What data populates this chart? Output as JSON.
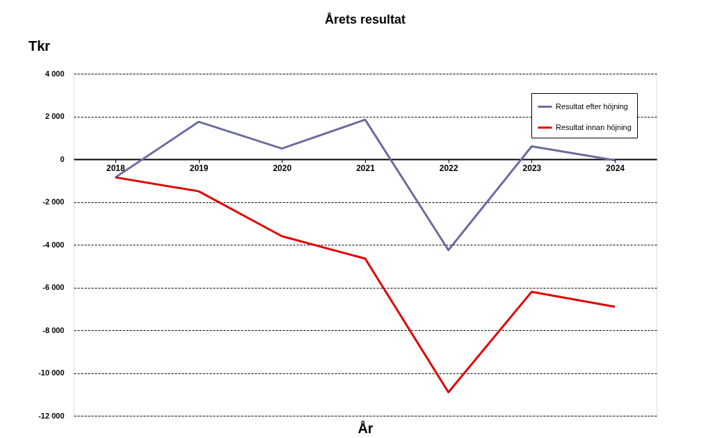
{
  "chart_data": {
    "type": "line",
    "title": "Årets resultat",
    "xlabel": "År",
    "ylabel": "Tkr",
    "categories": [
      "2018",
      "2019",
      "2020",
      "2021",
      "2022",
      "2023",
      "2024"
    ],
    "series": [
      {
        "name": "Resultat efter höjning",
        "color": "#6b6b9e",
        "values": [
          -850,
          1750,
          500,
          1850,
          -4250,
          600,
          -50
        ]
      },
      {
        "name": "Resultat innan höjning",
        "color": "#e00000",
        "values": [
          -850,
          -1500,
          -3600,
          -4650,
          -10900,
          -6200,
          -6900
        ]
      }
    ],
    "ylim": [
      -12000,
      4000
    ],
    "yticks": [
      {
        "value": -12000,
        "label": "-12 000"
      },
      {
        "value": -10000,
        "label": "-10 000"
      },
      {
        "value": -8000,
        "label": "-8 000"
      },
      {
        "value": -6000,
        "label": "-6 000"
      },
      {
        "value": -4000,
        "label": "-4 000"
      },
      {
        "value": -2000,
        "label": "-2 000"
      },
      0,
      {
        "value": 2000,
        "label": "2 000"
      },
      {
        "value": 4000,
        "label": "4 000"
      }
    ],
    "grid": "y",
    "legend": "top right",
    "marker": "none",
    "line_style": "solid"
  }
}
